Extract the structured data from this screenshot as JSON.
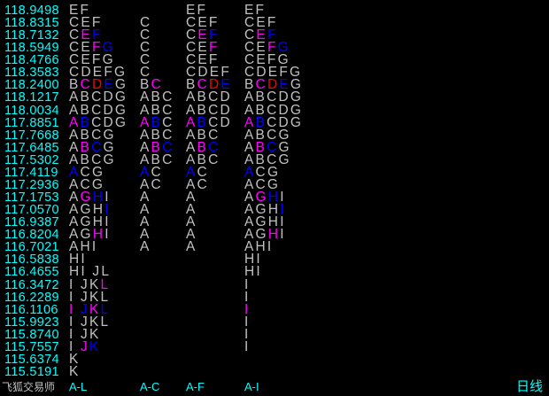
{
  "palette": {
    "price": "#00ffff",
    "letter": "#c0c0c0",
    "magenta": "#ff00ff",
    "blue": "#0000ff",
    "red": "#ff0000",
    "background": "#000000"
  },
  "footer": {
    "brand": "飞狐交易师",
    "period": "日线"
  },
  "chart_data": {
    "type": "table",
    "columns": [
      "A-L",
      "A-C",
      "A-F",
      "A-I"
    ],
    "rows": [
      {
        "price": "118.9498",
        "cells": [
          {
            "text": "EF"
          },
          {
            "text": ""
          },
          {
            "text": "EF"
          },
          {
            "text": "EF"
          }
        ]
      },
      {
        "price": "118.8315",
        "cells": [
          {
            "text": "CEF"
          },
          {
            "text": "C"
          },
          {
            "text": "CEF"
          },
          {
            "text": "CEF"
          }
        ]
      },
      {
        "price": "118.7132",
        "cells": [
          {
            "text": "CEF",
            "hl": {
              "E": "magenta",
              "F": "blue"
            }
          },
          {
            "text": "C"
          },
          {
            "text": "CEF",
            "hl": {
              "E": "magenta",
              "F": "blue"
            }
          },
          {
            "text": "CEF",
            "hl": {
              "E": "magenta",
              "F": "blue"
            }
          }
        ]
      },
      {
        "price": "118.5949",
        "cells": [
          {
            "text": "CEFG",
            "hl": {
              "F": "magenta",
              "G": "blue"
            }
          },
          {
            "text": "C"
          },
          {
            "text": "CEF",
            "hl": {
              "F": "magenta"
            }
          },
          {
            "text": "CEFG",
            "hl": {
              "F": "magenta",
              "G": "blue"
            }
          }
        ]
      },
      {
        "price": "118.4766",
        "cells": [
          {
            "text": "CEFG"
          },
          {
            "text": "C"
          },
          {
            "text": "CEF"
          },
          {
            "text": "CEFG"
          }
        ]
      },
      {
        "price": "118.3583",
        "cells": [
          {
            "text": "CDEFG"
          },
          {
            "text": "C"
          },
          {
            "text": "CDEF"
          },
          {
            "text": "CDEFG"
          }
        ]
      },
      {
        "price": "118.2400",
        "cells": [
          {
            "text": "BCDEG",
            "hl": {
              "C": "magenta",
              "D": "red",
              "E": "blue"
            }
          },
          {
            "text": "BC",
            "hl": {
              "C": "magenta"
            }
          },
          {
            "text": "BCDE",
            "hl": {
              "C": "magenta",
              "D": "red",
              "E": "blue"
            }
          },
          {
            "text": "BCDEG",
            "hl": {
              "C": "magenta",
              "D": "red",
              "E": "blue"
            }
          }
        ]
      },
      {
        "price": "118.1217",
        "cells": [
          {
            "text": "ABCDG"
          },
          {
            "text": "ABC"
          },
          {
            "text": "ABCD"
          },
          {
            "text": "ABCDG"
          }
        ]
      },
      {
        "price": "118.0034",
        "cells": [
          {
            "text": "ABCDG"
          },
          {
            "text": "ABC"
          },
          {
            "text": "ABCD"
          },
          {
            "text": "ABCDG"
          }
        ]
      },
      {
        "price": "117.8851",
        "cells": [
          {
            "text": "ABCDG",
            "hl": {
              "A": "magenta",
              "B": "blue"
            }
          },
          {
            "text": "ABC",
            "hl": {
              "A": "magenta",
              "B": "blue"
            }
          },
          {
            "text": "ABCD",
            "hl": {
              "A": "magenta",
              "B": "blue"
            }
          },
          {
            "text": "ABCDG",
            "hl": {
              "A": "magenta",
              "B": "blue"
            }
          }
        ]
      },
      {
        "price": "117.7668",
        "cells": [
          {
            "text": "ABCG"
          },
          {
            "text": "ABC"
          },
          {
            "text": "ABC"
          },
          {
            "text": "ABCG"
          }
        ]
      },
      {
        "price": "117.6485",
        "cells": [
          {
            "text": "ABCG",
            "hl": {
              "B": "magenta",
              "C": "blue"
            }
          },
          {
            "text": "ABC",
            "hl": {
              "B": "magenta",
              "C": "blue"
            }
          },
          {
            "text": "ABC",
            "hl": {
              "B": "magenta",
              "C": "blue"
            }
          },
          {
            "text": "ABCG",
            "hl": {
              "B": "magenta",
              "C": "blue"
            }
          }
        ]
      },
      {
        "price": "117.5302",
        "cells": [
          {
            "text": "ABCG"
          },
          {
            "text": "ABC"
          },
          {
            "text": "ABC"
          },
          {
            "text": "ABCG"
          }
        ]
      },
      {
        "price": "117.4119",
        "cells": [
          {
            "text": "ACG",
            "hl": {
              "A": "blue"
            }
          },
          {
            "text": "AC",
            "hl": {
              "A": "blue"
            }
          },
          {
            "text": "AC",
            "hl": {
              "A": "blue"
            }
          },
          {
            "text": "ACG",
            "hl": {
              "A": "blue"
            }
          }
        ]
      },
      {
        "price": "117.2936",
        "cells": [
          {
            "text": "ACG"
          },
          {
            "text": "AC"
          },
          {
            "text": "AC"
          },
          {
            "text": "ACG"
          }
        ]
      },
      {
        "price": "117.1753",
        "cells": [
          {
            "text": "AGHI",
            "hl": {
              "G": "magenta",
              "H": "blue"
            }
          },
          {
            "text": "A"
          },
          {
            "text": "A"
          },
          {
            "text": "AGHI",
            "hl": {
              "G": "magenta",
              "H": "blue"
            }
          }
        ]
      },
      {
        "price": "117.0570",
        "cells": [
          {
            "text": "AGHI",
            "hl": {
              "I": "blue"
            }
          },
          {
            "text": "A"
          },
          {
            "text": "A"
          },
          {
            "text": "AGHI",
            "hl": {
              "I": "blue"
            }
          }
        ]
      },
      {
        "price": "116.9387",
        "cells": [
          {
            "text": "AGHI"
          },
          {
            "text": "A"
          },
          {
            "text": "A"
          },
          {
            "text": "AGHI"
          }
        ]
      },
      {
        "price": "116.8204",
        "cells": [
          {
            "text": "AGHI",
            "hl": {
              "H": "magenta"
            }
          },
          {
            "text": "A"
          },
          {
            "text": "A"
          },
          {
            "text": "AGHI",
            "hl": {
              "H": "magenta"
            }
          }
        ]
      },
      {
        "price": "116.7021",
        "cells": [
          {
            "text": "AHI"
          },
          {
            "text": "A"
          },
          {
            "text": "A"
          },
          {
            "text": "AHI"
          }
        ]
      },
      {
        "price": "116.5838",
        "cells": [
          {
            "text": "HI"
          },
          {
            "text": ""
          },
          {
            "text": ""
          },
          {
            "text": "HI"
          }
        ]
      },
      {
        "price": "116.4655",
        "cells": [
          {
            "text": "HI JL"
          },
          {
            "text": ""
          },
          {
            "text": ""
          },
          {
            "text": "HI"
          }
        ]
      },
      {
        "price": "116.3472",
        "cells": [
          {
            "text": "I JKL",
            "hl": {
              "L": "magenta"
            }
          },
          {
            "text": ""
          },
          {
            "text": ""
          },
          {
            "text": "I"
          }
        ]
      },
      {
        "price": "116.2289",
        "cells": [
          {
            "text": "I JKL"
          },
          {
            "text": ""
          },
          {
            "text": ""
          },
          {
            "text": "I"
          }
        ]
      },
      {
        "price": "116.1106",
        "cells": [
          {
            "text": "I JKL",
            "hl": {
              "I": "magenta",
              "J": "blue",
              "K": "magenta",
              "L": "blue"
            }
          },
          {
            "text": ""
          },
          {
            "text": ""
          },
          {
            "text": "I",
            "hl": {
              "I": "magenta"
            }
          }
        ]
      },
      {
        "price": "115.9923",
        "cells": [
          {
            "text": "I JKL"
          },
          {
            "text": ""
          },
          {
            "text": ""
          },
          {
            "text": "I"
          }
        ]
      },
      {
        "price": "115.8740",
        "cells": [
          {
            "text": "I JK"
          },
          {
            "text": ""
          },
          {
            "text": ""
          },
          {
            "text": "I"
          }
        ]
      },
      {
        "price": "115.7557",
        "cells": [
          {
            "text": "I JK",
            "hl": {
              "J": "magenta",
              "K": "blue"
            }
          },
          {
            "text": ""
          },
          {
            "text": ""
          },
          {
            "text": "I"
          }
        ]
      },
      {
        "price": "115.6374",
        "cells": [
          {
            "text": "K"
          },
          {
            "text": ""
          },
          {
            "text": ""
          },
          {
            "text": ""
          }
        ]
      },
      {
        "price": "115.5191",
        "cells": [
          {
            "text": "K"
          },
          {
            "text": ""
          },
          {
            "text": ""
          },
          {
            "text": ""
          }
        ]
      }
    ]
  }
}
